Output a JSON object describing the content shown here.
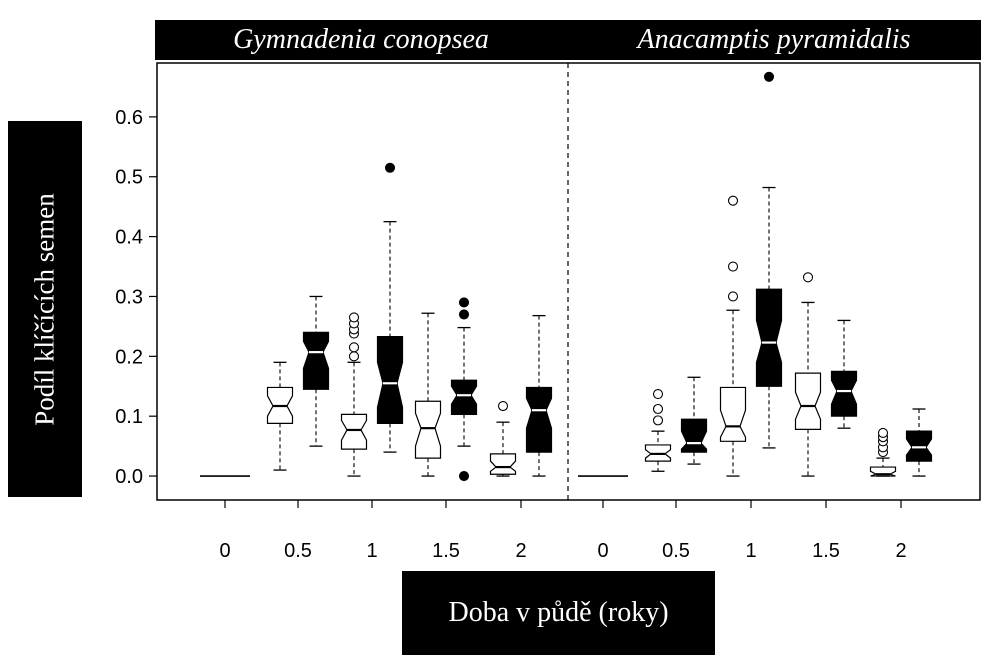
{
  "panels": [
    {
      "title": "Gymnadenia conopsea"
    },
    {
      "title": "Anacamptis pyramidalis"
    }
  ],
  "axis": {
    "ylabel": "Podíl klíčících semen",
    "xlabel": "Doba v půdě (roky)",
    "yticks": [
      "0.0",
      "0.1",
      "0.2",
      "0.3",
      "0.4",
      "0.5",
      "0.6"
    ],
    "xticks": [
      "0",
      "0.5",
      "1",
      "1.5",
      "2"
    ]
  },
  "chart_data": {
    "type": "boxplot",
    "ylim": [
      -0.04,
      0.69
    ],
    "legend": "none",
    "grid": false,
    "panels": [
      {
        "title": "Gymnadenia conopsea",
        "categories": [
          "0",
          "0.5",
          "1",
          "1.5",
          "2"
        ],
        "groups": [
          [
            {
              "fill": "white",
              "min": 0,
              "q1": 0,
              "median": 0,
              "q3": 0,
              "max": 0,
              "notch": [
                0,
                0
              ],
              "outliers": []
            },
            {
              "fill": "black",
              "min": 0,
              "q1": 0,
              "median": 0,
              "q3": 0,
              "max": 0,
              "notch": [
                0,
                0
              ],
              "outliers": [],
              "hidden": true
            }
          ],
          [
            {
              "fill": "white",
              "min": 0.01,
              "q1": 0.088,
              "median": 0.117,
              "q3": 0.148,
              "max": 0.19,
              "notch": [
                0.1,
                0.134
              ],
              "outliers": []
            },
            {
              "fill": "black",
              "min": 0.05,
              "q1": 0.145,
              "median": 0.207,
              "q3": 0.24,
              "max": 0.3,
              "notch": [
                0.18,
                0.225
              ],
              "outliers": []
            }
          ],
          [
            {
              "fill": "white",
              "min": 0,
              "q1": 0.045,
              "median": 0.077,
              "q3": 0.103,
              "max": 0.19,
              "notch": [
                0.06,
                0.093
              ],
              "outliers": [
                0.2,
                0.215,
                0.238,
                0.245,
                0.255,
                0.265
              ]
            },
            {
              "fill": "black",
              "min": 0.04,
              "q1": 0.088,
              "median": 0.155,
              "q3": 0.233,
              "max": 0.425,
              "notch": [
                0.115,
                0.19
              ],
              "outliers": [
                0.515
              ]
            }
          ],
          [
            {
              "fill": "white",
              "min": 0,
              "q1": 0.03,
              "median": 0.08,
              "q3": 0.125,
              "max": 0.272,
              "notch": [
                0.05,
                0.105
              ],
              "outliers": []
            },
            {
              "fill": "black",
              "min": 0.05,
              "q1": 0.103,
              "median": 0.135,
              "q3": 0.16,
              "max": 0.248,
              "notch": [
                0.12,
                0.15
              ],
              "outliers": [
                0.0,
                0.27,
                0.29
              ]
            }
          ],
          [
            {
              "fill": "white",
              "min": 0,
              "q1": 0.003,
              "median": 0.015,
              "q3": 0.037,
              "max": 0.09,
              "notch": [
                0.008,
                0.025
              ],
              "outliers": [
                0.117
              ]
            },
            {
              "fill": "black",
              "min": 0,
              "q1": 0.04,
              "median": 0.11,
              "q3": 0.148,
              "max": 0.268,
              "notch": [
                0.08,
                0.13
              ],
              "outliers": []
            }
          ]
        ]
      },
      {
        "title": "Anacamptis pyramidalis",
        "categories": [
          "0",
          "0.5",
          "1",
          "1.5",
          "2"
        ],
        "groups": [
          [
            {
              "fill": "white",
              "min": 0,
              "q1": 0,
              "median": 0,
              "q3": 0,
              "max": 0,
              "notch": [
                0,
                0
              ],
              "outliers": []
            },
            {
              "fill": "black",
              "min": 0,
              "q1": 0,
              "median": 0,
              "q3": 0,
              "max": 0,
              "notch": [
                0,
                0
              ],
              "outliers": [],
              "hidden": true
            }
          ],
          [
            {
              "fill": "white",
              "min": 0.008,
              "q1": 0.025,
              "median": 0.037,
              "q3": 0.052,
              "max": 0.075,
              "notch": [
                0.03,
                0.044
              ],
              "outliers": [
                0.093,
                0.112,
                0.137
              ]
            },
            {
              "fill": "black",
              "min": 0.02,
              "q1": 0.04,
              "median": 0.055,
              "q3": 0.095,
              "max": 0.165,
              "notch": [
                0.045,
                0.075
              ],
              "outliers": []
            }
          ],
          [
            {
              "fill": "white",
              "min": 0,
              "q1": 0.058,
              "median": 0.083,
              "q3": 0.148,
              "max": 0.277,
              "notch": [
                0.065,
                0.11
              ],
              "outliers": [
                0.3,
                0.35,
                0.46
              ]
            },
            {
              "fill": "black",
              "min": 0.047,
              "q1": 0.15,
              "median": 0.223,
              "q3": 0.312,
              "max": 0.482,
              "notch": [
                0.19,
                0.26
              ],
              "outliers": [
                0.667
              ]
            }
          ],
          [
            {
              "fill": "white",
              "min": 0,
              "q1": 0.078,
              "median": 0.117,
              "q3": 0.172,
              "max": 0.29,
              "notch": [
                0.095,
                0.14
              ],
              "outliers": [
                0.332
              ]
            },
            {
              "fill": "black",
              "min": 0.08,
              "q1": 0.1,
              "median": 0.142,
              "q3": 0.175,
              "max": 0.26,
              "notch": [
                0.12,
                0.16
              ],
              "outliers": []
            }
          ],
          [
            {
              "fill": "white",
              "min": 0,
              "q1": 0,
              "median": 0.003,
              "q3": 0.015,
              "max": 0.03,
              "notch": [
                0,
                0.008
              ],
              "outliers": [
                0.04,
                0.048,
                0.058,
                0.065,
                0.072
              ]
            },
            {
              "fill": "black",
              "min": 0,
              "q1": 0.025,
              "median": 0.048,
              "q3": 0.075,
              "max": 0.112,
              "notch": [
                0.035,
                0.062
              ],
              "outliers": []
            }
          ]
        ]
      }
    ]
  }
}
